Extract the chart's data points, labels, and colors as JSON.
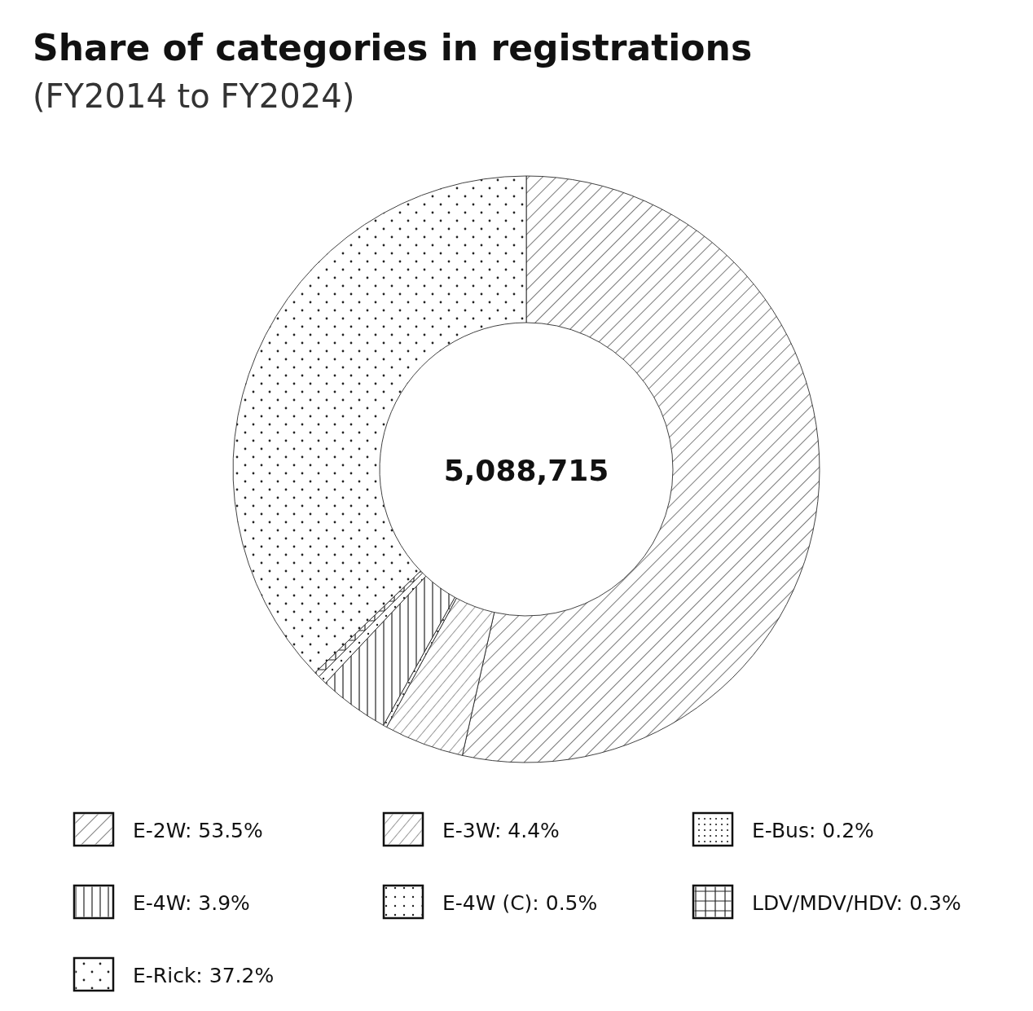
{
  "chart_data": {
    "type": "donut",
    "title": "Share of categories in registrations",
    "subtitle": "(FY2014 to FY2024)",
    "categories": [
      "E-2W",
      "E-3W",
      "E-Bus",
      "E-4W",
      "E-4W (C)",
      "LDV/MDV/HDV",
      "E-Rick"
    ],
    "values": [
      53.5,
      4.4,
      0.2,
      3.9,
      0.5,
      0.3,
      37.2
    ],
    "value_labels": [
      "53.5%",
      "4.4%",
      "0.2%",
      "3.9%",
      "0.5%",
      "0.3%",
      "37.2%"
    ],
    "colors": [
      "#ffffff",
      "#ffffff",
      "#ffffff",
      "#ffffff",
      "#ffffff",
      "#ffffff",
      "#ffffff"
    ],
    "annotations": [
      "5,088,715"
    ],
    "legend": "bottom"
  }
}
